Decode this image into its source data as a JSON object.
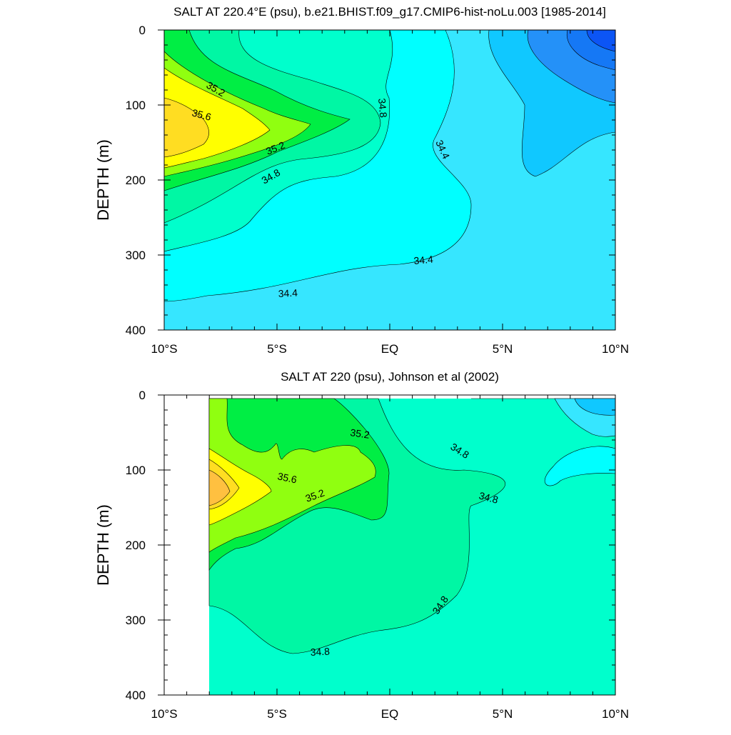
{
  "chart_data": [
    {
      "type": "contour",
      "title": "SALT AT 220.4°E (psu), b.e21.BHIST.f09_g17.CMIP6-hist-noLu.003 [1985-2014]",
      "ylabel": "DEPTH (m)",
      "xlim": [
        -10,
        10
      ],
      "ylim": [
        0,
        400
      ],
      "y_inverted": true,
      "xticks": [
        {
          "value": -10,
          "label": "10°S"
        },
        {
          "value": -5,
          "label": "5°S"
        },
        {
          "value": 0,
          "label": "EQ"
        },
        {
          "value": 5,
          "label": "5°N"
        },
        {
          "value": 10,
          "label": "10°N"
        }
      ],
      "yticks": [
        0,
        100,
        200,
        300,
        400
      ],
      "contour_labels": [
        "35.2",
        "35.6",
        "35.2",
        "34.8",
        "34.8",
        "34.4",
        "34.4",
        "34.4"
      ],
      "max_region": {
        "lat": -9.5,
        "depth": 140,
        "salt": 35.8
      },
      "min_region": {
        "lat": 9.8,
        "depth": 5,
        "salt": 34.0
      }
    },
    {
      "type": "contour",
      "title": "SALT AT 220 (psu), Johnson et al (2002)",
      "ylabel": "DEPTH (m)",
      "xlim": [
        -10,
        10
      ],
      "ylim": [
        0,
        400
      ],
      "y_inverted": true,
      "data_start_lat": -8,
      "xticks": [
        {
          "value": -10,
          "label": "10°S"
        },
        {
          "value": -5,
          "label": "5°S"
        },
        {
          "value": 0,
          "label": "EQ"
        },
        {
          "value": 5,
          "label": "5°N"
        },
        {
          "value": 10,
          "label": "10°N"
        }
      ],
      "yticks": [
        0,
        100,
        200,
        300,
        400
      ],
      "contour_labels": [
        "35.2",
        "35.6",
        "35.2",
        "34.8",
        "34.8",
        "34.8",
        "34.8"
      ],
      "max_region": {
        "lat": -7.5,
        "depth": 125,
        "salt": 35.8
      }
    }
  ],
  "colors": {
    "deep_blue": "#0c55f5",
    "blue": "#2491f8",
    "sky": "#10c8ff",
    "cyan_light": "#36e6ff",
    "cyan": "#00ffff",
    "aqua": "#00ffcc",
    "teal_green": "#00f7a4",
    "green": "#00ee44",
    "lime": "#90ff10",
    "yellow": "#ffff00",
    "gold": "#ffdd22",
    "orange": "#ffc040"
  }
}
